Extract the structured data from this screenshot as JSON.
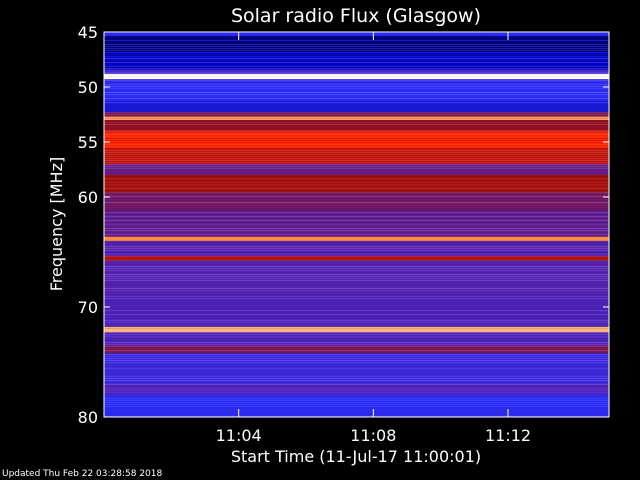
{
  "chart_data": {
    "type": "heatmap",
    "title": "Solar radio Flux (Glasgow)",
    "xlabel": "Start Time (11-Jul-17 11:00:01)",
    "ylabel": "Frequency [MHz]",
    "x_unit": "minutes after 11:00:01",
    "xlim": [
      0,
      15
    ],
    "ylim": [
      45,
      80
    ],
    "y_inverted": true,
    "x_ticks": [
      {
        "value": 4,
        "label": "11:04"
      },
      {
        "value": 8,
        "label": "11:08"
      },
      {
        "value": 12,
        "label": "11:12"
      }
    ],
    "y_ticks": [
      {
        "value": 45,
        "label": "45"
      },
      {
        "value": 50,
        "label": "50"
      },
      {
        "value": 55,
        "label": "55"
      },
      {
        "value": 60,
        "label": "60"
      },
      {
        "value": 70,
        "label": "70"
      },
      {
        "value": 80,
        "label": "80"
      }
    ],
    "grid": false,
    "colormap": [
      "#000040",
      "#0000c0",
      "#3030ff",
      "#6020a0",
      "#a01010",
      "#ff2000",
      "#ff9040",
      "#ffffff"
    ],
    "bands": [
      {
        "from": 45.0,
        "to": 45.4,
        "intensity": 0.25
      },
      {
        "from": 45.4,
        "to": 46.8,
        "intensity": 0.08
      },
      {
        "from": 46.8,
        "to": 48.4,
        "intensity": 0.16
      },
      {
        "from": 48.4,
        "to": 48.8,
        "intensity": 0.35
      },
      {
        "from": 48.8,
        "to": 49.3,
        "intensity": 1.0
      },
      {
        "from": 49.3,
        "to": 50.0,
        "intensity": 0.3
      },
      {
        "from": 50.0,
        "to": 51.2,
        "intensity": 0.28
      },
      {
        "from": 51.2,
        "to": 52.3,
        "intensity": 0.22
      },
      {
        "from": 52.3,
        "to": 52.7,
        "intensity": 0.5
      },
      {
        "from": 52.7,
        "to": 53.0,
        "intensity": 0.88
      },
      {
        "from": 53.0,
        "to": 54.0,
        "intensity": 0.55
      },
      {
        "from": 54.0,
        "to": 55.6,
        "intensity": 0.72
      },
      {
        "from": 55.6,
        "to": 57.0,
        "intensity": 0.62
      },
      {
        "from": 57.0,
        "to": 58.0,
        "intensity": 0.45
      },
      {
        "from": 58.0,
        "to": 59.6,
        "intensity": 0.58
      },
      {
        "from": 59.6,
        "to": 61.2,
        "intensity": 0.48
      },
      {
        "from": 61.2,
        "to": 63.6,
        "intensity": 0.44
      },
      {
        "from": 63.6,
        "to": 64.0,
        "intensity": 0.85
      },
      {
        "from": 64.0,
        "to": 65.4,
        "intensity": 0.4
      },
      {
        "from": 65.4,
        "to": 65.8,
        "intensity": 0.62
      },
      {
        "from": 65.8,
        "to": 69.0,
        "intensity": 0.4
      },
      {
        "from": 69.0,
        "to": 71.8,
        "intensity": 0.38
      },
      {
        "from": 71.8,
        "to": 72.3,
        "intensity": 0.9
      },
      {
        "from": 72.3,
        "to": 73.5,
        "intensity": 0.38
      },
      {
        "from": 73.5,
        "to": 74.2,
        "intensity": 0.5
      },
      {
        "from": 74.2,
        "to": 77.0,
        "intensity": 0.33
      },
      {
        "from": 77.0,
        "to": 78.0,
        "intensity": 0.38
      },
      {
        "from": 78.0,
        "to": 80.0,
        "intensity": 0.28
      }
    ]
  },
  "footer": {
    "updated_text": "Updated Thu Feb 22 03:28:58 2018"
  }
}
